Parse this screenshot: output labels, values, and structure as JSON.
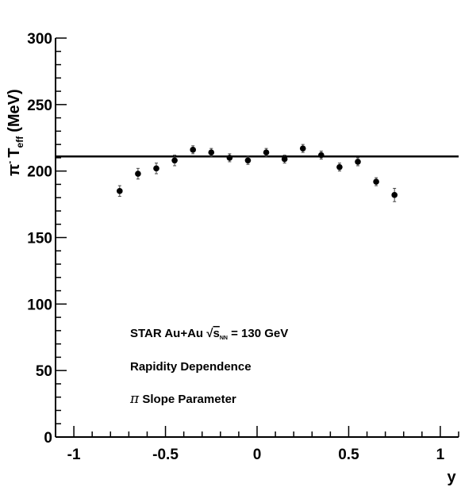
{
  "chart_data": {
    "type": "scatter",
    "title": "",
    "ylabel_parts": {
      "pi": "π",
      "sup": "-",
      "T": "T",
      "sub": "eff",
      "unit": "(MeV)"
    },
    "xlabel": "y",
    "xlim": [
      -1.1,
      1.1
    ],
    "ylim": [
      0,
      300
    ],
    "x_ticks": [
      -1,
      -0.5,
      0,
      0.5,
      1
    ],
    "x_tick_labels": [
      "-1",
      "-0.5",
      "0",
      "0.5",
      "1"
    ],
    "y_ticks": [
      0,
      50,
      100,
      150,
      200,
      250,
      300
    ],
    "y_tick_labels": [
      "0",
      "50",
      "100",
      "150",
      "200",
      "250",
      "300"
    ],
    "grid": false,
    "reference_line": {
      "y": 211
    },
    "points": [
      {
        "x": -0.75,
        "y": 185,
        "err": 4
      },
      {
        "x": -0.65,
        "y": 198,
        "err": 4
      },
      {
        "x": -0.55,
        "y": 202,
        "err": 4
      },
      {
        "x": -0.45,
        "y": 208,
        "err": 4
      },
      {
        "x": -0.35,
        "y": 216,
        "err": 3
      },
      {
        "x": -0.25,
        "y": 214,
        "err": 3
      },
      {
        "x": -0.15,
        "y": 210,
        "err": 3
      },
      {
        "x": -0.05,
        "y": 208,
        "err": 3
      },
      {
        "x": 0.05,
        "y": 214,
        "err": 3
      },
      {
        "x": 0.15,
        "y": 209,
        "err": 3
      },
      {
        "x": 0.25,
        "y": 217,
        "err": 3
      },
      {
        "x": 0.35,
        "y": 212,
        "err": 3
      },
      {
        "x": 0.45,
        "y": 203,
        "err": 3
      },
      {
        "x": 0.55,
        "y": 207,
        "err": 3
      },
      {
        "x": 0.65,
        "y": 192,
        "err": 3
      },
      {
        "x": 0.75,
        "y": 182,
        "err": 5
      }
    ],
    "annotations": {
      "line1_pre": "STAR Au+Au ",
      "line1_sqrt": "√",
      "line1_s": "s",
      "line1_sub": "NN",
      "line1_post": " = 130 GeV",
      "line2": "Rapidity Dependence",
      "line3_symbol": "π",
      "line3_text": " Slope Parameter"
    },
    "colors": {
      "axis": "#000000",
      "marker": "#000000",
      "errorbar": "#444444"
    }
  }
}
